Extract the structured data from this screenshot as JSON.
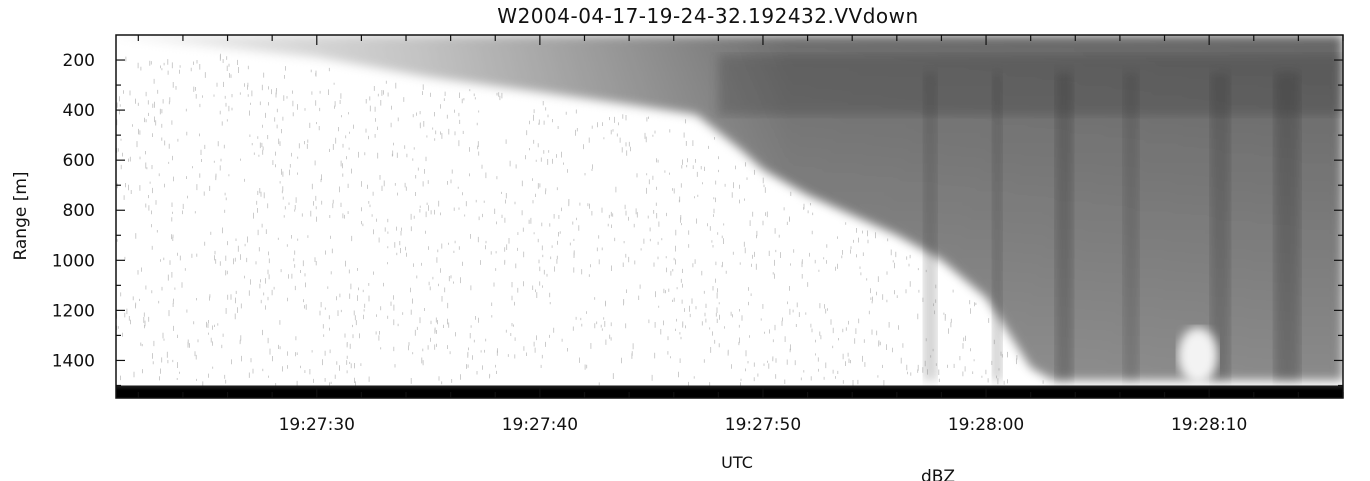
{
  "chart_data": {
    "type": "heatmap",
    "title": "W2004-04-17-19-24-32.192432.VVdown",
    "xlabel": "UTC",
    "ylabel": "Range [m]",
    "colorbar_label": "dBZ",
    "x_range": [
      "19:27:21",
      "19:28:16"
    ],
    "y_range": [
      100,
      1550
    ],
    "y_inverted": true,
    "x_ticks": [
      "19:27:30",
      "19:27:40",
      "19:27:50",
      "19:28:00",
      "19:28:10"
    ],
    "x_tick_seconds": [
      30,
      40,
      50,
      60,
      70
    ],
    "y_ticks": [
      200,
      400,
      600,
      800,
      1000,
      1200,
      1400
    ],
    "colormap": "grayscale (white = low reflectivity, black = high)",
    "echo_boundary_profile": {
      "description": "approximate lower edge of the precipitation echo (range in m) vs time (seconds after 19:27:00)",
      "t": [
        21,
        30,
        35,
        40,
        44,
        47,
        49,
        50,
        52,
        54,
        56,
        58,
        60,
        62,
        63,
        65,
        67,
        69,
        71,
        73,
        76
      ],
      "range": [
        110,
        190,
        270,
        330,
        380,
        420,
        560,
        640,
        740,
        820,
        900,
        1000,
        1150,
        1430,
        1480,
        1480,
        1480,
        1480,
        1480,
        1480,
        1480
      ]
    },
    "ground_return_range": [
      1500,
      1550
    ]
  }
}
